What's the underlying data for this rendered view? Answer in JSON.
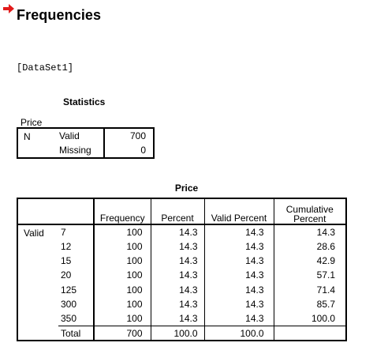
{
  "output": {
    "heading": "Frequencies",
    "dataset": "[DataSet1]",
    "arrow_color": "#e21b1b"
  },
  "statistics": {
    "title": "Statistics",
    "variable": "Price",
    "n_label": "N",
    "valid_label": "Valid",
    "valid_value": "700",
    "missing_label": "Missing",
    "missing_value": "0"
  },
  "frequency_table": {
    "title": "Price",
    "columns": [
      "Frequency",
      "Percent",
      "Valid Percent",
      "Cumulative Percent"
    ],
    "group_label": "Valid",
    "rows": [
      {
        "value": "7",
        "frequency": "100",
        "percent": "14.3",
        "valid_percent": "14.3",
        "cumulative_percent": "14.3"
      },
      {
        "value": "12",
        "frequency": "100",
        "percent": "14.3",
        "valid_percent": "14.3",
        "cumulative_percent": "28.6"
      },
      {
        "value": "15",
        "frequency": "100",
        "percent": "14.3",
        "valid_percent": "14.3",
        "cumulative_percent": "42.9"
      },
      {
        "value": "20",
        "frequency": "100",
        "percent": "14.3",
        "valid_percent": "14.3",
        "cumulative_percent": "57.1"
      },
      {
        "value": "125",
        "frequency": "100",
        "percent": "14.3",
        "valid_percent": "14.3",
        "cumulative_percent": "71.4"
      },
      {
        "value": "300",
        "frequency": "100",
        "percent": "14.3",
        "valid_percent": "14.3",
        "cumulative_percent": "85.7"
      },
      {
        "value": "350",
        "frequency": "100",
        "percent": "14.3",
        "valid_percent": "14.3",
        "cumulative_percent": "100.0"
      }
    ],
    "total": {
      "label": "Total",
      "frequency": "700",
      "percent": "100.0",
      "valid_percent": "100.0",
      "cumulative_percent": ""
    }
  }
}
